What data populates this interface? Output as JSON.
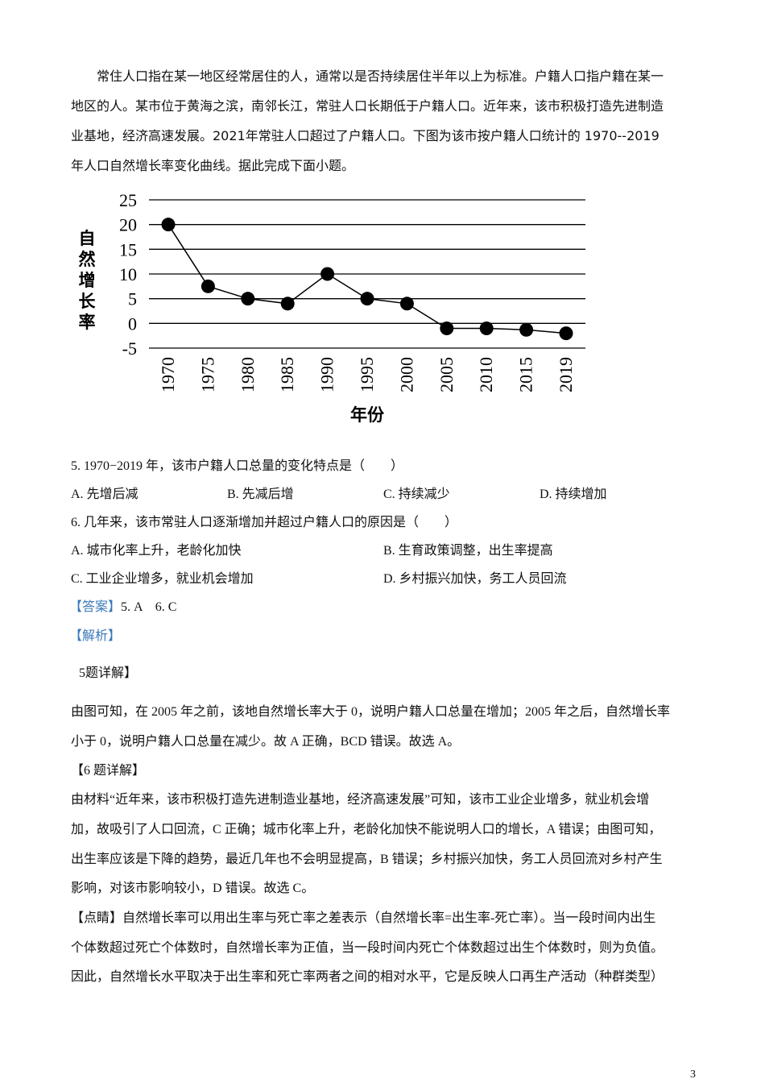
{
  "intro_lines": [
    "常住人口指在某一地区经常居住的人，通常以是否持续居住半年以上为标准。户籍人口指户籍在某一",
    "地区的人。某市位于黄海之滨，南邻长江，常驻人口长期低于户籍人口。近年来，该市积极打造先进制造",
    "业基地，经济高速发展。2021年常驻人口超过了户籍人口。下图为该市按户籍人口统计的 1970--2019",
    "年人口自然增长率变化曲线。据此完成下面小题。"
  ],
  "chart_data": {
    "type": "line",
    "xlabel": "年份",
    "ylabel": "自然增长率",
    "categories": [
      "1970",
      "1975",
      "1980",
      "1985",
      "1990",
      "1995",
      "2000",
      "2005",
      "2010",
      "2015",
      "2019"
    ],
    "values": [
      20,
      7.5,
      5,
      4,
      10,
      5,
      4,
      -1,
      -1,
      -1.3,
      -2
    ],
    "yticks": [
      25,
      20,
      15,
      10,
      5,
      0,
      -5
    ],
    "ylim": [
      -5,
      25
    ],
    "grid": true,
    "marker": "filled-circle",
    "line_color": "#000000"
  },
  "q5": {
    "stem": "5. 1970−2019 年，该市户籍人口总量的变化特点是（　　）",
    "options": [
      "A. 先增后减",
      "B. 先减后增",
      "C. 持续减少",
      "D. 持续增加"
    ]
  },
  "q6": {
    "stem": "6. 几年来，该市常驻人口逐渐增加并超过户籍人口的原因是（　　）",
    "options": [
      "A. 城市化率上升，老龄化加快",
      "B. 生育政策调整，出生率提高",
      "C. 工业企业增多，就业机会增加",
      "D. 乡村振兴加快，务工人员回流"
    ]
  },
  "answer": {
    "tag": "【答案】",
    "text": "5. A　6. C"
  },
  "analysis_tag": "【解析】",
  "detail5": {
    "heading": "5题详解】",
    "lines": [
      "由图可知，在 2005 年之前，该地自然增长率大于 0，说明户籍人口总量在增加；2005 年之后，自然增长率",
      "小于 0，说明户籍人口总量在减少。故 A 正确，BCD 错误。故选 A。"
    ]
  },
  "detail6": {
    "heading": "【6 题详解】",
    "lines": [
      "由材料“近年来，该市积极打造先进制造业基地，经济高速发展”可知，该市工业企业增多，就业机会增",
      "加，故吸引了人口回流，C 正确；城市化率上升，老龄化加快不能说明人口的增长，A 错误；由图可知，",
      "出生率应该是下降的趋势，最近几年也不会明显提高，B 错误；乡村振兴加快，务工人员回流对乡村产生",
      "影响，对该市影响较小，D 错误。故选 C。"
    ]
  },
  "tip": {
    "lines": [
      "【点睛】自然增长率可以用出生率与死亡率之差表示（自然增长率=出生率-死亡率）。当一段时间内出生",
      "个体数超过死亡个体数时，自然增长率为正值，当一段时间内死亡个体数超过出生个体数时，则为负值。",
      "因此，自然增长水平取决于出生率和死亡率两者之间的相对水平，它是反映人口再生产活动（种群类型）"
    ]
  },
  "page_number": "3",
  "colors": {
    "accent_blue": "#3a78b8"
  }
}
